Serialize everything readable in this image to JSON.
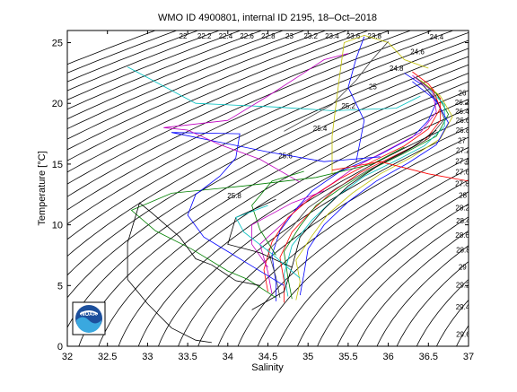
{
  "chart_data": {
    "type": "line",
    "title": "WMO ID 4900801, internal ID 2195, 18–Oct–2018",
    "xlabel": "Salinity",
    "ylabel": "Temperature [°C]",
    "xlim": [
      32,
      37
    ],
    "ylim": [
      0,
      26
    ],
    "x_ticks": [
      "32",
      "32.5",
      "33",
      "33.5",
      "34",
      "34.5",
      "35",
      "35.5",
      "36",
      "36.5",
      "37"
    ],
    "y_ticks": [
      "0",
      "5",
      "10",
      "15",
      "20",
      "25"
    ],
    "grid": false,
    "contour_labels": [
      "22",
      "22.2",
      "22.4",
      "22.6",
      "22.8",
      "23",
      "23.2",
      "23.4",
      "23.6",
      "23.8",
      "24",
      "24.2",
      "24.4",
      "24.6",
      "24.8",
      "25",
      "25.2",
      "25.4",
      "25.6",
      "25.8",
      "26",
      "26.2",
      "26.4",
      "26.6",
      "26.8",
      "27",
      "27.2",
      "27.4",
      "27.6",
      "27.8",
      "28",
      "28.2",
      "28.4",
      "28.6",
      "28.8",
      "29",
      "29.2",
      "29.4",
      "29.6",
      "29.8",
      "30"
    ],
    "series": [
      {
        "color": "#0000ff",
        "points": [
          [
            34.6,
            3.7
          ],
          [
            34.6,
            5.2
          ],
          [
            34.55,
            7.5
          ],
          [
            34.65,
            9.5
          ],
          [
            34.85,
            11.3
          ],
          [
            35.05,
            12.8
          ],
          [
            35.4,
            14.4
          ],
          [
            35.9,
            15.8
          ],
          [
            36.3,
            17.2
          ],
          [
            36.5,
            18.6
          ],
          [
            36.6,
            20.1
          ],
          [
            36.45,
            21.4
          ],
          [
            36.2,
            22.5
          ]
        ]
      },
      {
        "color": "#ff0000",
        "points": [
          [
            34.7,
            3.6
          ],
          [
            34.7,
            5.4
          ],
          [
            34.65,
            7.3
          ],
          [
            34.8,
            9.4
          ],
          [
            35.05,
            11.2
          ],
          [
            35.3,
            12.7
          ],
          [
            35.65,
            14.3
          ],
          [
            36.05,
            15.6
          ],
          [
            36.45,
            16.9
          ],
          [
            36.65,
            18.6
          ],
          [
            36.65,
            20.4
          ],
          [
            36.5,
            21.6
          ],
          [
            36.3,
            22.6
          ]
        ]
      },
      {
        "color": "#008000",
        "points": [
          [
            34.8,
            3.9
          ],
          [
            34.75,
            5.6
          ],
          [
            34.7,
            7.8
          ],
          [
            34.9,
            9.9
          ],
          [
            35.1,
            11.6
          ],
          [
            35.45,
            13.2
          ],
          [
            35.8,
            14.6
          ],
          [
            36.2,
            15.9
          ],
          [
            36.6,
            17.3
          ],
          [
            36.75,
            19.1
          ],
          [
            36.6,
            20.8
          ],
          [
            36.35,
            22.1
          ]
        ]
      },
      {
        "color": "#00bfbf",
        "points": [
          [
            34.75,
            4.1
          ],
          [
            34.7,
            5.9
          ],
          [
            34.8,
            8.3
          ],
          [
            35.05,
            10.4
          ],
          [
            35.35,
            12.3
          ],
          [
            35.7,
            14.0
          ],
          [
            36.1,
            15.3
          ],
          [
            36.45,
            16.5
          ],
          [
            36.7,
            18.1
          ],
          [
            36.7,
            19.9
          ],
          [
            36.5,
            21.2
          ]
        ]
      },
      {
        "color": "#bf00bf",
        "points": [
          [
            34.55,
            4.3
          ],
          [
            34.5,
            6.1
          ],
          [
            34.4,
            8.4
          ],
          [
            34.7,
            10.2
          ],
          [
            34.95,
            11.9
          ],
          [
            35.3,
            13.4
          ],
          [
            35.6,
            14.8
          ],
          [
            36.0,
            16.2
          ],
          [
            36.4,
            17.6
          ],
          [
            36.6,
            19.3
          ],
          [
            36.55,
            21.0
          ],
          [
            36.3,
            22.3
          ]
        ]
      },
      {
        "color": "#bfbf00",
        "points": [
          [
            34.85,
            3.8
          ],
          [
            34.9,
            5.3
          ],
          [
            34.85,
            7.1
          ],
          [
            35.05,
            9.1
          ],
          [
            35.25,
            10.9
          ],
          [
            35.55,
            12.6
          ],
          [
            35.9,
            14.2
          ],
          [
            36.3,
            15.6
          ],
          [
            36.65,
            17.1
          ],
          [
            36.8,
            18.9
          ],
          [
            36.65,
            20.6
          ],
          [
            36.4,
            21.9
          ]
        ]
      },
      {
        "color": "#404040",
        "points": [
          [
            34.65,
            4.0
          ],
          [
            34.6,
            5.7
          ],
          [
            34.5,
            7.9
          ],
          [
            34.8,
            9.8
          ],
          [
            35.0,
            11.4
          ],
          [
            35.35,
            13.0
          ],
          [
            35.75,
            14.5
          ],
          [
            36.15,
            15.8
          ],
          [
            36.5,
            17.1
          ],
          [
            36.7,
            18.7
          ],
          [
            36.6,
            20.3
          ],
          [
            36.4,
            21.7
          ]
        ]
      },
      {
        "color": "#000000",
        "points": [
          [
            34.3,
            3.0
          ],
          [
            34.7,
            4.5
          ],
          [
            34.8,
            6.5
          ],
          [
            34.9,
            9.0
          ],
          [
            35.2,
            11.3
          ],
          [
            35.5,
            13.2
          ],
          [
            35.9,
            15.0
          ],
          [
            36.3,
            16.4
          ],
          [
            36.6,
            17.8
          ]
        ]
      },
      {
        "color": "#0000ff",
        "points": [
          [
            34.9,
            4.2
          ],
          [
            34.95,
            6.0
          ],
          [
            35.0,
            8.0
          ],
          [
            35.2,
            10.0
          ],
          [
            35.5,
            11.9
          ],
          [
            35.85,
            13.6
          ],
          [
            36.25,
            15.1
          ],
          [
            36.6,
            16.6
          ],
          [
            36.75,
            18.4
          ],
          [
            36.6,
            20.2
          ],
          [
            36.3,
            21.8
          ]
        ]
      },
      {
        "color": "#ff0000",
        "points": [
          [
            34.5,
            4.5
          ],
          [
            34.45,
            6.3
          ],
          [
            34.55,
            8.6
          ],
          [
            34.75,
            10.6
          ],
          [
            35.05,
            12.3
          ],
          [
            35.4,
            13.8
          ],
          [
            35.8,
            15.2
          ],
          [
            36.2,
            16.5
          ],
          [
            36.5,
            17.9
          ],
          [
            36.65,
            19.6
          ],
          [
            36.55,
            21.2
          ]
        ]
      },
      {
        "color": "#008000",
        "points": [
          [
            34.6,
            4.0
          ],
          [
            34.25,
            5.5
          ],
          [
            34.0,
            6.2
          ],
          [
            33.55,
            8.0
          ],
          [
            33.1,
            9.5
          ],
          [
            32.8,
            11.2
          ],
          [
            33.3,
            12.6
          ],
          [
            34.2,
            13.2
          ],
          [
            35.1,
            13.9
          ],
          [
            35.8,
            15.0
          ],
          [
            36.2,
            16.4
          ]
        ]
      },
      {
        "color": "#0000ff",
        "points": [
          [
            34.7,
            5.0
          ],
          [
            34.2,
            7.0
          ],
          [
            33.7,
            9.0
          ],
          [
            33.5,
            10.8
          ],
          [
            33.6,
            12.5
          ],
          [
            33.9,
            14.0
          ],
          [
            34.1,
            15.5
          ],
          [
            34.15,
            17.5
          ],
          [
            33.3,
            17.6
          ],
          [
            34.5,
            16.0
          ],
          [
            35.2,
            15.2
          ],
          [
            35.9,
            15.6
          ]
        ]
      },
      {
        "color": "#00bfbf",
        "points": [
          [
            32.75,
            23.0
          ],
          [
            33.6,
            20.0
          ],
          [
            34.6,
            19.7
          ],
          [
            35.3,
            19.4
          ],
          [
            36.1,
            19.6
          ],
          [
            36.4,
            20.6
          ]
        ]
      },
      {
        "color": "#000000",
        "points": [
          [
            34.4,
            5.0
          ],
          [
            34.1,
            5.4
          ],
          [
            33.8,
            6.7
          ],
          [
            33.6,
            7.2
          ],
          [
            33.4,
            9.0
          ],
          [
            33.05,
            11.0
          ],
          [
            32.9,
            11.8
          ],
          [
            32.75,
            8.5
          ],
          [
            32.75,
            5.5
          ],
          [
            33.0,
            3.5
          ],
          [
            33.3,
            1.5
          ],
          [
            33.6,
            0.5
          ],
          [
            33.8,
            0.3
          ]
        ]
      },
      {
        "color": "#bf00bf",
        "points": [
          [
            34.9,
            13.5
          ],
          [
            34.4,
            15.4
          ],
          [
            33.9,
            16.6
          ],
          [
            33.5,
            17.8
          ],
          [
            33.2,
            18.0
          ],
          [
            34.0,
            18.6
          ],
          [
            34.5,
            20.6
          ],
          [
            34.9,
            22.3
          ],
          [
            35.2,
            23.6
          ],
          [
            35.5,
            24.1
          ]
        ]
      },
      {
        "color": "#bfbf00",
        "points": [
          [
            35.3,
            14.2
          ],
          [
            35.3,
            17.3
          ],
          [
            35.35,
            20.0
          ],
          [
            35.4,
            22.6
          ],
          [
            35.45,
            25.0
          ],
          [
            35.7,
            25.6
          ],
          [
            36.0,
            25.0
          ],
          [
            36.2,
            23.6
          ],
          [
            36.5,
            22.9
          ]
        ]
      },
      {
        "color": "#ff0000",
        "points": [
          [
            35.3,
            14.5
          ],
          [
            35.9,
            15.2
          ],
          [
            36.5,
            14.2
          ],
          [
            37.0,
            13.6
          ]
        ]
      },
      {
        "color": "#404040",
        "points": [
          [
            34.7,
            17.7
          ],
          [
            35.3,
            19.9
          ],
          [
            35.6,
            21.9
          ],
          [
            35.8,
            23.6
          ],
          [
            36.0,
            25.1
          ]
        ]
      },
      {
        "color": "#0000ff",
        "points": [
          [
            35.6,
            15.2
          ],
          [
            35.7,
            18.6
          ],
          [
            35.5,
            21.3
          ],
          [
            35.6,
            23.7
          ],
          [
            35.7,
            25.5
          ]
        ]
      },
      {
        "color": "#008000",
        "points": [
          [
            34.6,
            7.5
          ],
          [
            34.4,
            9.6
          ],
          [
            34.3,
            11.6
          ],
          [
            34.55,
            13.6
          ],
          [
            34.95,
            14.4
          ]
        ]
      },
      {
        "color": "#bf00bf",
        "points": [
          [
            34.5,
            6.5
          ],
          [
            34.3,
            8.4
          ],
          [
            34.3,
            10.0
          ],
          [
            34.8,
            11.8
          ],
          [
            35.2,
            12.8
          ]
        ]
      },
      {
        "color": "#000000",
        "points": [
          [
            34.8,
            6.5
          ],
          [
            34.4,
            7.7
          ],
          [
            34.0,
            8.4
          ],
          [
            34.1,
            10.6
          ],
          [
            34.6,
            12.1
          ]
        ]
      },
      {
        "color": "#00bfbf",
        "points": [
          [
            34.9,
            5.6
          ],
          [
            34.55,
            7.6
          ],
          [
            34.2,
            9.4
          ],
          [
            34.1,
            10.6
          ],
          [
            34.5,
            11.6
          ]
        ]
      }
    ]
  }
}
